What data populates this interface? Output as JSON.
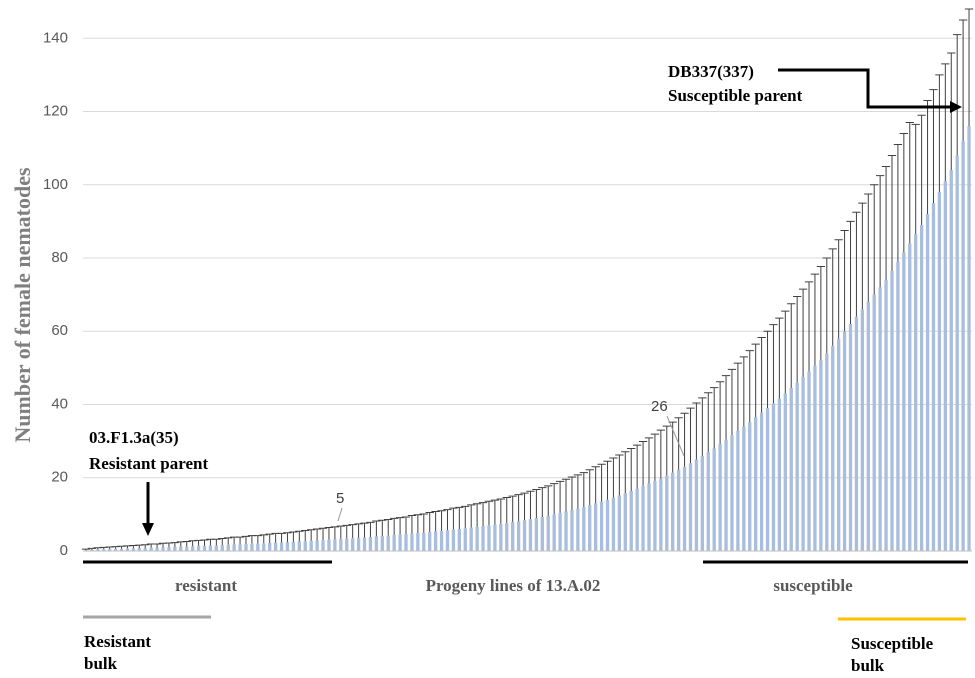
{
  "chart_data": {
    "type": "bar",
    "y_label": "Number of female nematodes",
    "ylim": [
      0,
      148
    ],
    "yticks": [
      0,
      20,
      40,
      60,
      80,
      100,
      120,
      140
    ],
    "grid": true,
    "series": [
      {
        "color": "#a9bedd",
        "values": [
          0.2,
          0.3,
          0.4,
          0.5,
          0.5,
          0.6,
          0.6,
          0.7,
          0.7,
          0.8,
          0.8,
          0.9,
          0.9,
          1.0,
          1.0,
          1.1,
          1.2,
          1.2,
          1.3,
          1.4,
          1.4,
          1.5,
          1.5,
          1.6,
          1.7,
          1.8,
          1.8,
          1.9,
          2.0,
          2.0,
          2.1,
          2.2,
          2.3,
          2.3,
          2.4,
          2.5,
          2.6,
          2.7,
          2.8,
          2.9,
          3.0,
          3.1,
          3.2,
          3.3,
          3.4,
          3.5,
          3.6,
          3.7,
          3.8,
          4.0,
          4.1,
          4.2,
          4.4,
          4.5,
          4.6,
          4.8,
          4.9,
          5.0,
          5.2,
          5.4,
          5.5,
          5.7,
          5.9,
          6.0,
          6.2,
          6.4,
          6.6,
          6.8,
          7.0,
          7.2,
          7.4,
          7.6,
          7.9,
          8.1,
          8.4,
          8.7,
          9.0,
          9.3,
          9.6,
          10.0,
          10.4,
          10.8,
          11.2,
          11.6,
          12.0,
          12.5,
          13.0,
          13.5,
          14.0,
          14.6,
          15.2,
          15.8,
          16.4,
          17.0,
          17.7,
          18.4,
          19.1,
          19.8,
          20.6,
          21.4,
          22.2,
          23.0,
          24.0,
          25.0,
          26.0,
          27.0,
          28.0,
          29.2,
          30.4,
          31.6,
          32.8,
          34.0,
          35.2,
          36.5,
          37.8,
          39.0,
          40.3,
          41.6,
          43.0,
          44.5,
          46.0,
          47.5,
          49.0,
          50.6,
          52.2,
          54.0,
          56.0,
          58.0,
          60.0,
          62.0,
          64.0,
          66.0,
          68.0,
          70.0,
          72.0,
          74.0,
          76.5,
          79.0,
          81.5,
          84.0,
          86.5,
          89.0,
          92.0,
          95.0,
          98.0,
          101.0,
          104.0,
          108.0,
          112.0,
          116.0
        ],
        "errors": [
          0.3,
          0.4,
          0.5,
          0.5,
          0.6,
          0.6,
          0.7,
          0.7,
          0.8,
          0.8,
          0.9,
          1.0,
          1.0,
          1.1,
          1.2,
          1.2,
          1.3,
          1.4,
          1.5,
          1.5,
          1.6,
          1.7,
          1.7,
          1.8,
          1.9,
          2.0,
          2.0,
          2.1,
          2.2,
          2.2,
          2.3,
          2.4,
          2.5,
          2.5,
          2.6,
          2.7,
          2.8,
          2.9,
          3.0,
          3.1,
          3.2,
          3.3,
          3.4,
          3.5,
          3.6,
          3.7,
          3.8,
          3.9,
          4.0,
          4.2,
          4.3,
          4.4,
          4.5,
          4.6,
          4.7,
          4.9,
          5.0,
          5.1,
          5.3,
          5.4,
          5.5,
          5.6,
          5.8,
          5.9,
          6.0,
          6.2,
          6.3,
          6.4,
          6.6,
          6.7,
          6.8,
          7.0,
          7.1,
          7.3,
          7.4,
          7.6,
          7.8,
          8.0,
          8.2,
          8.4,
          8.6,
          8.8,
          9.0,
          9.2,
          9.4,
          9.7,
          10.0,
          10.2,
          10.5,
          10.8,
          11.0,
          11.3,
          11.6,
          11.9,
          12.2,
          12.5,
          12.8,
          13.2,
          13.5,
          13.8,
          14.2,
          14.6,
          15.0,
          15.4,
          15.8,
          16.2,
          16.6,
          17.0,
          17.5,
          18.0,
          18.5,
          19.0,
          19.5,
          20.0,
          20.5,
          21.0,
          21.5,
          22.0,
          22.5,
          23.0,
          23.5,
          24.0,
          24.5,
          25.0,
          25.5,
          26.0,
          26.5,
          27.0,
          27.5,
          28.0,
          28.5,
          29.0,
          29.5,
          30.0,
          30.5,
          31.0,
          31.5,
          32.0,
          32.5,
          33.0,
          30,
          30,
          31,
          31,
          32,
          32,
          32,
          33,
          33,
          32
        ]
      }
    ],
    "annotations": [
      "DB337(337)",
      "Susceptible parent",
      "03.F1.3a(35)",
      "Resistant parent",
      "5",
      "26",
      "resistant",
      "Progeny lines of 13.A.02",
      "susceptible",
      "Resistant",
      "bulk",
      "Susceptible",
      "bulk"
    ]
  }
}
